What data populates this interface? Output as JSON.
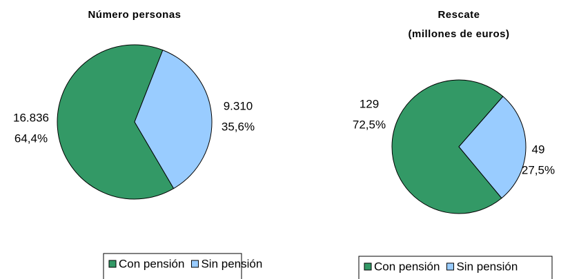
{
  "chart_data": [
    {
      "type": "pie",
      "title": "Número personas",
      "categories": [
        "Con pensión",
        "Sin pensión"
      ],
      "values": [
        16836,
        9310
      ],
      "value_labels": [
        "16.836",
        "9.310"
      ],
      "percents": [
        64.4,
        35.6
      ],
      "percent_labels": [
        "64,4%",
        "35,6%"
      ],
      "colors": [
        "#339966",
        "#99ccff"
      ],
      "legend": "bottom"
    },
    {
      "type": "pie",
      "title": "Rescate",
      "subtitle": "(millones de euros)",
      "categories": [
        "Con pensión",
        "Sin pensión"
      ],
      "values": [
        129,
        49
      ],
      "value_labels": [
        "129",
        "49"
      ],
      "percents": [
        72.5,
        27.5
      ],
      "percent_labels": [
        "72,5%",
        "27,5%"
      ],
      "colors": [
        "#339966",
        "#99ccff"
      ],
      "legend": "bottom"
    }
  ]
}
